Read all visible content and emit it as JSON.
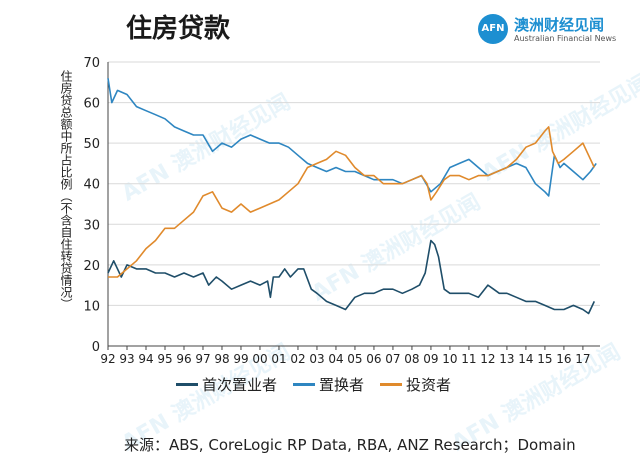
{
  "header": {
    "title": "住房贷款",
    "logo_mark": "AFN",
    "logo_cn": "澳洲财经见闻",
    "logo_en": "Australian Financial News"
  },
  "source_note": "来源：ABS, CoreLogic RP Data, RBA, ANZ Research；Domain",
  "colors": {
    "first_home": "#1f4e69",
    "upgrader": "#2e86c1",
    "investor": "#e08a2c"
  },
  "chart_data": {
    "type": "line",
    "ylabel": "住房贷总额中所占比例（不含自住转贷情况）",
    "ylim": [
      0,
      70
    ],
    "yticks": [
      0,
      10,
      20,
      30,
      40,
      50,
      60,
      70
    ],
    "xlim": [
      1992,
      2017.9
    ],
    "xtick_labels": [
      "92",
      "93",
      "94",
      "95",
      "96",
      "97",
      "98",
      "99",
      "00",
      "01",
      "02",
      "03",
      "04",
      "05",
      "06",
      "07",
      "08",
      "09",
      "10",
      "11",
      "12",
      "13",
      "14",
      "15",
      "16",
      "17"
    ],
    "legend": "bottom",
    "series": [
      {
        "name": "首次置业者",
        "key": "first_home",
        "x": [
          1992.0,
          1992.3,
          1992.7,
          1993.0,
          1993.5,
          1994.0,
          1994.5,
          1995.0,
          1995.5,
          1996.0,
          1996.5,
          1997.0,
          1997.3,
          1997.7,
          1998.0,
          1998.5,
          1999.0,
          1999.5,
          2000.0,
          2000.4,
          2000.55,
          2000.7,
          2001.0,
          2001.3,
          2001.6,
          2002.0,
          2002.3,
          2002.7,
          2003.0,
          2003.5,
          2004.0,
          2004.5,
          2005.0,
          2005.5,
          2006.0,
          2006.5,
          2007.0,
          2007.5,
          2008.0,
          2008.4,
          2008.7,
          2009.0,
          2009.2,
          2009.4,
          2009.7,
          2010.0,
          2010.5,
          2011.0,
          2011.5,
          2012.0,
          2012.3,
          2012.6,
          2013.0,
          2013.5,
          2014.0,
          2014.5,
          2015.0,
          2015.5,
          2016.0,
          2016.5,
          2017.0,
          2017.3,
          2017.6
        ],
        "values": [
          18,
          21,
          17,
          20,
          19,
          19,
          18,
          18,
          17,
          18,
          17,
          18,
          15,
          17,
          16,
          14,
          15,
          16,
          15,
          16,
          12,
          17,
          17,
          19,
          17,
          19,
          19,
          14,
          13,
          11,
          10,
          9,
          12,
          13,
          13,
          14,
          14,
          13,
          14,
          15,
          18,
          26,
          25,
          22,
          14,
          13,
          13,
          13,
          12,
          15,
          14,
          13,
          13,
          12,
          11,
          11,
          10,
          9,
          9,
          10,
          9,
          8,
          11
        ]
      },
      {
        "name": "置换者",
        "key": "upgrader",
        "x": [
          1992.0,
          1992.2,
          1992.5,
          1993.0,
          1993.5,
          1994.0,
          1994.5,
          1995.0,
          1995.5,
          1996.0,
          1996.5,
          1997.0,
          1997.5,
          1998.0,
          1998.5,
          1999.0,
          1999.5,
          2000.0,
          2000.5,
          2001.0,
          2001.5,
          2002.0,
          2002.5,
          2003.0,
          2003.5,
          2004.0,
          2004.5,
          2005.0,
          2005.5,
          2006.0,
          2006.5,
          2007.0,
          2007.5,
          2008.0,
          2008.5,
          2009.0,
          2009.5,
          2010.0,
          2010.5,
          2011.0,
          2011.5,
          2012.0,
          2012.5,
          2013.0,
          2013.5,
          2014.0,
          2014.5,
          2015.0,
          2015.2,
          2015.5,
          2015.8,
          2016.0,
          2016.5,
          2017.0,
          2017.4,
          2017.7
        ],
        "values": [
          66,
          60,
          63,
          62,
          59,
          58,
          57,
          56,
          54,
          53,
          52,
          52,
          48,
          50,
          49,
          51,
          52,
          51,
          50,
          50,
          49,
          47,
          45,
          44,
          43,
          44,
          43,
          43,
          42,
          41,
          41,
          41,
          40,
          41,
          42,
          38,
          40,
          44,
          45,
          46,
          44,
          42,
          43,
          44,
          45,
          44,
          40,
          38,
          37,
          47,
          44,
          45,
          43,
          41,
          43,
          45
        ]
      },
      {
        "name": "投资者",
        "key": "investor",
        "x": [
          1992.0,
          1992.5,
          1993.0,
          1993.5,
          1994.0,
          1994.5,
          1995.0,
          1995.5,
          1996.0,
          1996.5,
          1997.0,
          1997.5,
          1998.0,
          1998.5,
          1999.0,
          1999.5,
          2000.0,
          2000.5,
          2001.0,
          2001.5,
          2002.0,
          2002.5,
          2003.0,
          2003.5,
          2004.0,
          2004.5,
          2005.0,
          2005.5,
          2006.0,
          2006.5,
          2007.0,
          2007.5,
          2008.0,
          2008.5,
          2008.8,
          2009.0,
          2009.3,
          2009.7,
          2010.0,
          2010.5,
          2011.0,
          2011.5,
          2012.0,
          2012.5,
          2013.0,
          2013.5,
          2014.0,
          2014.5,
          2015.0,
          2015.2,
          2015.4,
          2015.7,
          2016.0,
          2016.5,
          2017.0,
          2017.3,
          2017.6
        ],
        "values": [
          17,
          17,
          19,
          21,
          24,
          26,
          29,
          29,
          31,
          33,
          37,
          38,
          34,
          33,
          35,
          33,
          34,
          35,
          36,
          38,
          40,
          44,
          45,
          46,
          48,
          47,
          44,
          42,
          42,
          40,
          40,
          40,
          41,
          42,
          40,
          36,
          38,
          41,
          42,
          42,
          41,
          42,
          42,
          43,
          44,
          46,
          49,
          50,
          53,
          54,
          48,
          45,
          46,
          48,
          50,
          47,
          44
        ]
      }
    ]
  }
}
